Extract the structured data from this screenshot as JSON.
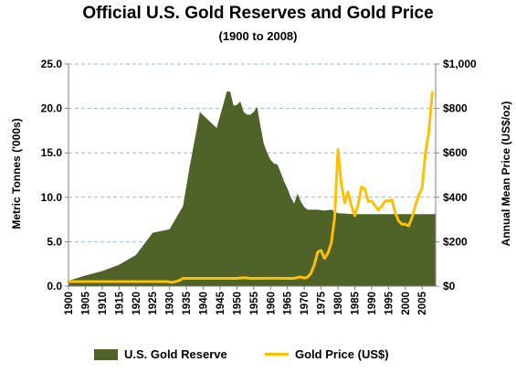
{
  "chart_data": {
    "type": "area",
    "title": "Official U.S. Gold Reserves and Gold Price",
    "subtitle": "(1900 to 2008)",
    "ylabel_left": "Metric Tonnes ('000s)",
    "ylabel_right": "Annual Mean Price (US$/oz)",
    "xlim": [
      1900,
      2009
    ],
    "ylim_left": [
      0,
      25
    ],
    "ylim_right": [
      0,
      1000
    ],
    "x_ticks": [
      "1900",
      "1905",
      "1910",
      "1915",
      "1920",
      "1925",
      "1930",
      "1935",
      "1940",
      "1945",
      "1950",
      "1955",
      "1960",
      "1965",
      "1970",
      "1975",
      "1980",
      "1985",
      "1990",
      "1995",
      "2000",
      "2005"
    ],
    "y_ticks_left": [
      "0.0",
      "5.0",
      "10.0",
      "15.0",
      "20.0",
      "25.0"
    ],
    "y_ticks_right": [
      "$0",
      "$200",
      "$400",
      "$600",
      "$800",
      "$1,000"
    ],
    "grid": "horizontal dashed",
    "legend_position": "bottom",
    "series": [
      {
        "name": "U.S. Gold Reserve",
        "axis": "left",
        "style": "area",
        "color": "#4f6228",
        "points": [
          [
            1900,
            0.6
          ],
          [
            1905,
            1.2
          ],
          [
            1910,
            1.7
          ],
          [
            1915,
            2.4
          ],
          [
            1920,
            3.5
          ],
          [
            1925,
            6.0
          ],
          [
            1930,
            6.4
          ],
          [
            1934,
            9.0
          ],
          [
            1936,
            13.5
          ],
          [
            1938,
            17.5
          ],
          [
            1939,
            19.6
          ],
          [
            1942,
            18.5
          ],
          [
            1944,
            17.8
          ],
          [
            1946,
            20.5
          ],
          [
            1947,
            21.9
          ],
          [
            1948,
            21.9
          ],
          [
            1949,
            20.3
          ],
          [
            1950,
            20.4
          ],
          [
            1951,
            20.8
          ],
          [
            1952,
            19.6
          ],
          [
            1953,
            19.3
          ],
          [
            1954,
            19.3
          ],
          [
            1955,
            19.6
          ],
          [
            1956,
            20.2
          ],
          [
            1957,
            18.0
          ],
          [
            1958,
            16.0
          ],
          [
            1959,
            15.0
          ],
          [
            1960,
            14.2
          ],
          [
            1961,
            13.8
          ],
          [
            1962,
            13.7
          ],
          [
            1963,
            12.8
          ],
          [
            1964,
            11.8
          ],
          [
            1965,
            11.0
          ],
          [
            1966,
            10.0
          ],
          [
            1967,
            9.3
          ],
          [
            1968,
            10.4
          ],
          [
            1969,
            9.5
          ],
          [
            1970,
            8.9
          ],
          [
            1971,
            8.6
          ],
          [
            1972,
            8.6
          ],
          [
            1974,
            8.6
          ],
          [
            1976,
            8.5
          ],
          [
            1978,
            8.6
          ],
          [
            1980,
            8.2
          ],
          [
            1985,
            8.1
          ],
          [
            1990,
            8.1
          ],
          [
            1995,
            8.1
          ],
          [
            2000,
            8.1
          ],
          [
            2005,
            8.1
          ],
          [
            2009,
            8.1
          ]
        ]
      },
      {
        "name": "Gold Price (US$)",
        "axis": "right",
        "style": "line",
        "color": "#ffc000",
        "points": [
          [
            1900,
            20.7
          ],
          [
            1905,
            20.7
          ],
          [
            1910,
            20.7
          ],
          [
            1915,
            20.7
          ],
          [
            1920,
            20.7
          ],
          [
            1925,
            20.7
          ],
          [
            1929,
            20.7
          ],
          [
            1931,
            17.1
          ],
          [
            1933,
            26
          ],
          [
            1934,
            35
          ],
          [
            1940,
            35
          ],
          [
            1945,
            35
          ],
          [
            1950,
            35
          ],
          [
            1952,
            38
          ],
          [
            1954,
            35
          ],
          [
            1955,
            35
          ],
          [
            1960,
            35.3
          ],
          [
            1965,
            35.1
          ],
          [
            1967,
            35.2
          ],
          [
            1968,
            39.3
          ],
          [
            1969,
            41.3
          ],
          [
            1970,
            36.0
          ],
          [
            1971,
            40.8
          ],
          [
            1972,
            58.2
          ],
          [
            1973,
            97.3
          ],
          [
            1974,
            154.0
          ],
          [
            1975,
            160.9
          ],
          [
            1976,
            124.8
          ],
          [
            1977,
            147.8
          ],
          [
            1978,
            193.2
          ],
          [
            1979,
            306.7
          ],
          [
            1980,
            615.0
          ],
          [
            1981,
            459.6
          ],
          [
            1982,
            375.9
          ],
          [
            1983,
            424.2
          ],
          [
            1984,
            360.7
          ],
          [
            1985,
            317.4
          ],
          [
            1986,
            367.7
          ],
          [
            1987,
            446.5
          ],
          [
            1988,
            437.0
          ],
          [
            1989,
            381.4
          ],
          [
            1990,
            383.5
          ],
          [
            1991,
            362.1
          ],
          [
            1992,
            343.8
          ],
          [
            1993,
            359.8
          ],
          [
            1994,
            384.0
          ],
          [
            1995,
            384.2
          ],
          [
            1996,
            387.8
          ],
          [
            1997,
            331.0
          ],
          [
            1998,
            294.2
          ],
          [
            1999,
            278.9
          ],
          [
            2000,
            279.1
          ],
          [
            2001,
            271.0
          ],
          [
            2002,
            309.7
          ],
          [
            2003,
            363.4
          ],
          [
            2004,
            409.7
          ],
          [
            2005,
            444.7
          ],
          [
            2006,
            603.5
          ],
          [
            2007,
            695.4
          ],
          [
            2008,
            871.9
          ]
        ]
      }
    ]
  }
}
